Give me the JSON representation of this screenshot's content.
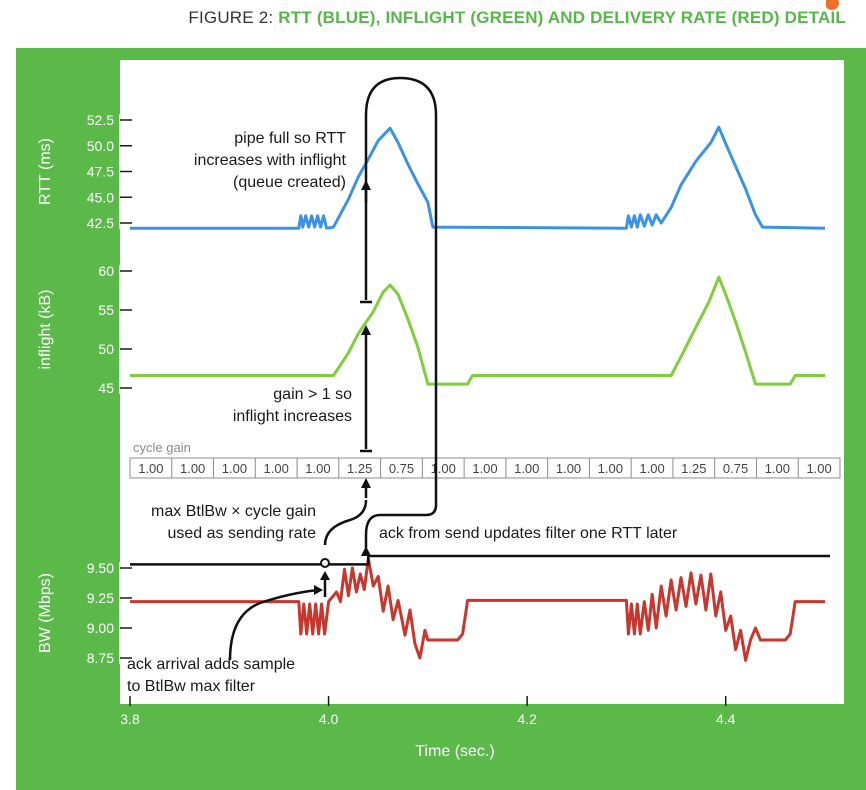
{
  "figure": {
    "title_prefix": "FIGURE 2: ",
    "title_highlight": "RTT (BLUE), INFLIGHT (GREEN) AND DELIVERY RATE (RED) DETAIL",
    "frame_color": "#5bb94a",
    "logo_text": "IX"
  },
  "chart_data": {
    "type": "line",
    "x_label": "Time (sec.)",
    "x_ticks": [
      "3.8",
      "4.0",
      "4.2",
      "4.4"
    ],
    "x_tick_values": [
      3.8,
      4.0,
      4.2,
      4.4
    ],
    "x_range": [
      3.8,
      4.5
    ],
    "panels": [
      {
        "name": "rtt",
        "ylabel": "RTT (ms)",
        "color": "#3a93e6",
        "y_ticks": [
          "52.5",
          "50.0",
          "47.5",
          "45.0",
          "42.5"
        ],
        "y_tick_values": [
          52.5,
          50.0,
          47.5,
          45.0,
          42.5
        ],
        "ylim": [
          41.0,
          53.0
        ],
        "series": [
          {
            "x": 3.8,
            "y": 42.0
          },
          {
            "x": 3.97,
            "y": 42.0
          },
          {
            "x": 3.972,
            "y": 43.2
          },
          {
            "x": 3.974,
            "y": 42.1
          },
          {
            "x": 3.977,
            "y": 43.2
          },
          {
            "x": 3.98,
            "y": 42.1
          },
          {
            "x": 3.983,
            "y": 43.2
          },
          {
            "x": 3.986,
            "y": 42.1
          },
          {
            "x": 3.989,
            "y": 43.2
          },
          {
            "x": 3.992,
            "y": 42.1
          },
          {
            "x": 3.995,
            "y": 43.2
          },
          {
            "x": 3.998,
            "y": 42.0
          },
          {
            "x": 4.005,
            "y": 42.1
          },
          {
            "x": 4.02,
            "y": 44.8
          },
          {
            "x": 4.03,
            "y": 47.0
          },
          {
            "x": 4.04,
            "y": 48.7
          },
          {
            "x": 4.05,
            "y": 50.5
          },
          {
            "x": 4.062,
            "y": 51.7
          },
          {
            "x": 4.07,
            "y": 50.3
          },
          {
            "x": 4.08,
            "y": 48.2
          },
          {
            "x": 4.09,
            "y": 46.3
          },
          {
            "x": 4.1,
            "y": 44.5
          },
          {
            "x": 4.105,
            "y": 42.1
          },
          {
            "x": 4.3,
            "y": 42.0
          },
          {
            "x": 4.302,
            "y": 43.2
          },
          {
            "x": 4.305,
            "y": 42.1
          },
          {
            "x": 4.308,
            "y": 43.2
          },
          {
            "x": 4.311,
            "y": 42.1
          },
          {
            "x": 4.314,
            "y": 43.3
          },
          {
            "x": 4.318,
            "y": 42.2
          },
          {
            "x": 4.322,
            "y": 43.3
          },
          {
            "x": 4.326,
            "y": 42.3
          },
          {
            "x": 4.33,
            "y": 43.3
          },
          {
            "x": 4.335,
            "y": 42.5
          },
          {
            "x": 4.345,
            "y": 44.0
          },
          {
            "x": 4.355,
            "y": 46.2
          },
          {
            "x": 4.37,
            "y": 48.5
          },
          {
            "x": 4.385,
            "y": 50.3
          },
          {
            "x": 4.393,
            "y": 51.8
          },
          {
            "x": 4.4,
            "y": 50.2
          },
          {
            "x": 4.41,
            "y": 48.0
          },
          {
            "x": 4.42,
            "y": 45.8
          },
          {
            "x": 4.43,
            "y": 43.3
          },
          {
            "x": 4.437,
            "y": 42.1
          },
          {
            "x": 4.5,
            "y": 42.0
          }
        ]
      },
      {
        "name": "inflight",
        "ylabel": "inflight (kB)",
        "color": "#7ecf3a",
        "y_ticks": [
          "60",
          "55",
          "50",
          "45"
        ],
        "y_tick_values": [
          60,
          55,
          50,
          45
        ],
        "ylim": [
          44.0,
          61.0
        ],
        "series": [
          {
            "x": 3.8,
            "y": 46.6
          },
          {
            "x": 4.005,
            "y": 46.6
          },
          {
            "x": 4.02,
            "y": 49.5
          },
          {
            "x": 4.03,
            "y": 52.0
          },
          {
            "x": 4.045,
            "y": 54.8
          },
          {
            "x": 4.055,
            "y": 57.3
          },
          {
            "x": 4.062,
            "y": 58.2
          },
          {
            "x": 4.07,
            "y": 57.0
          },
          {
            "x": 4.08,
            "y": 53.8
          },
          {
            "x": 4.09,
            "y": 50.2
          },
          {
            "x": 4.1,
            "y": 45.5
          },
          {
            "x": 4.14,
            "y": 45.5
          },
          {
            "x": 4.145,
            "y": 46.6
          },
          {
            "x": 4.345,
            "y": 46.6
          },
          {
            "x": 4.355,
            "y": 49.0
          },
          {
            "x": 4.37,
            "y": 52.8
          },
          {
            "x": 4.383,
            "y": 56.0
          },
          {
            "x": 4.393,
            "y": 59.2
          },
          {
            "x": 4.4,
            "y": 57.0
          },
          {
            "x": 4.41,
            "y": 53.5
          },
          {
            "x": 4.42,
            "y": 49.6
          },
          {
            "x": 4.43,
            "y": 45.5
          },
          {
            "x": 4.465,
            "y": 45.5
          },
          {
            "x": 4.47,
            "y": 46.6
          },
          {
            "x": 4.5,
            "y": 46.6
          }
        ]
      },
      {
        "name": "bw",
        "ylabel": "BW (Mbps)",
        "color": "#c8372d",
        "y_ticks": [
          "9.50",
          "9.25",
          "9.00",
          "8.75"
        ],
        "y_tick_values": [
          9.5,
          9.25,
          9.0,
          8.75
        ],
        "ylim": [
          8.6,
          9.68
        ],
        "series": [
          {
            "x": 3.8,
            "y": 9.22
          },
          {
            "x": 3.97,
            "y": 9.22
          },
          {
            "x": 3.972,
            "y": 8.95
          },
          {
            "x": 3.975,
            "y": 9.2
          },
          {
            "x": 3.978,
            "y": 8.95
          },
          {
            "x": 3.981,
            "y": 9.2
          },
          {
            "x": 3.984,
            "y": 8.95
          },
          {
            "x": 3.987,
            "y": 9.2
          },
          {
            "x": 3.99,
            "y": 8.95
          },
          {
            "x": 3.993,
            "y": 9.2
          },
          {
            "x": 3.996,
            "y": 8.95
          },
          {
            "x": 4.0,
            "y": 9.22
          },
          {
            "x": 4.008,
            "y": 9.3
          },
          {
            "x": 4.012,
            "y": 9.22
          },
          {
            "x": 4.016,
            "y": 9.49
          },
          {
            "x": 4.02,
            "y": 9.27
          },
          {
            "x": 4.024,
            "y": 9.5
          },
          {
            "x": 4.028,
            "y": 9.3
          },
          {
            "x": 4.032,
            "y": 9.45
          },
          {
            "x": 4.036,
            "y": 9.32
          },
          {
            "x": 4.04,
            "y": 9.58
          },
          {
            "x": 4.045,
            "y": 9.35
          },
          {
            "x": 4.05,
            "y": 9.43
          },
          {
            "x": 4.055,
            "y": 9.14
          },
          {
            "x": 4.06,
            "y": 9.35
          },
          {
            "x": 4.065,
            "y": 9.07
          },
          {
            "x": 4.07,
            "y": 9.23
          },
          {
            "x": 4.077,
            "y": 8.94
          },
          {
            "x": 4.082,
            "y": 9.15
          },
          {
            "x": 4.087,
            "y": 8.87
          },
          {
            "x": 4.092,
            "y": 8.75
          },
          {
            "x": 4.097,
            "y": 8.98
          },
          {
            "x": 4.1,
            "y": 8.9
          },
          {
            "x": 4.13,
            "y": 8.9
          },
          {
            "x": 4.135,
            "y": 8.95
          },
          {
            "x": 4.14,
            "y": 9.23
          },
          {
            "x": 4.3,
            "y": 9.23
          },
          {
            "x": 4.302,
            "y": 8.95
          },
          {
            "x": 4.305,
            "y": 9.2
          },
          {
            "x": 4.308,
            "y": 8.95
          },
          {
            "x": 4.311,
            "y": 9.2
          },
          {
            "x": 4.314,
            "y": 8.95
          },
          {
            "x": 4.318,
            "y": 9.22
          },
          {
            "x": 4.322,
            "y": 8.98
          },
          {
            "x": 4.326,
            "y": 9.28
          },
          {
            "x": 4.33,
            "y": 9.0
          },
          {
            "x": 4.335,
            "y": 9.35
          },
          {
            "x": 4.34,
            "y": 9.1
          },
          {
            "x": 4.345,
            "y": 9.4
          },
          {
            "x": 4.35,
            "y": 9.15
          },
          {
            "x": 4.355,
            "y": 9.42
          },
          {
            "x": 4.36,
            "y": 9.18
          },
          {
            "x": 4.365,
            "y": 9.46
          },
          {
            "x": 4.37,
            "y": 9.2
          },
          {
            "x": 4.375,
            "y": 9.44
          },
          {
            "x": 4.38,
            "y": 9.15
          },
          {
            "x": 4.385,
            "y": 9.45
          },
          {
            "x": 4.39,
            "y": 9.1
          },
          {
            "x": 4.395,
            "y": 9.3
          },
          {
            "x": 4.4,
            "y": 8.98
          },
          {
            "x": 4.405,
            "y": 9.1
          },
          {
            "x": 4.41,
            "y": 8.82
          },
          {
            "x": 4.415,
            "y": 8.98
          },
          {
            "x": 4.42,
            "y": 8.73
          },
          {
            "x": 4.425,
            "y": 8.9
          },
          {
            "x": 4.43,
            "y": 9.0
          },
          {
            "x": 4.435,
            "y": 8.9
          },
          {
            "x": 4.46,
            "y": 8.9
          },
          {
            "x": 4.465,
            "y": 8.95
          },
          {
            "x": 4.47,
            "y": 9.22
          },
          {
            "x": 4.5,
            "y": 9.22
          }
        ],
        "max_filter_line": {
          "x_start": 3.8,
          "x_step": 4.04,
          "y_before": 9.53,
          "y_after": 9.6
        }
      }
    ],
    "cycle_gain": {
      "label": "cycle gain",
      "cells": [
        "1.00",
        "1.00",
        "1.00",
        "1.00",
        "1.00",
        "1.25",
        "0.75",
        "1.00",
        "1.00",
        "1.00",
        "1.00",
        "1.00",
        "1.00",
        "1.25",
        "0.75",
        "1.00",
        "1.00"
      ]
    },
    "annotations": [
      {
        "key": "pipe_full",
        "lines": [
          "pipe full so RTT",
          "increases with inflight",
          "(queue created)"
        ]
      },
      {
        "key": "gain",
        "lines": [
          "gain > 1 so",
          "inflight increases"
        ]
      },
      {
        "key": "max_btlbw",
        "lines": [
          "max BtlBw × cycle gain",
          "used as sending rate"
        ]
      },
      {
        "key": "ack_send",
        "lines": [
          "ack from send updates filter one RTT later"
        ]
      },
      {
        "key": "ack_arrival",
        "lines": [
          "ack arrival adds sample",
          "to BtlBw max filter"
        ]
      }
    ]
  }
}
